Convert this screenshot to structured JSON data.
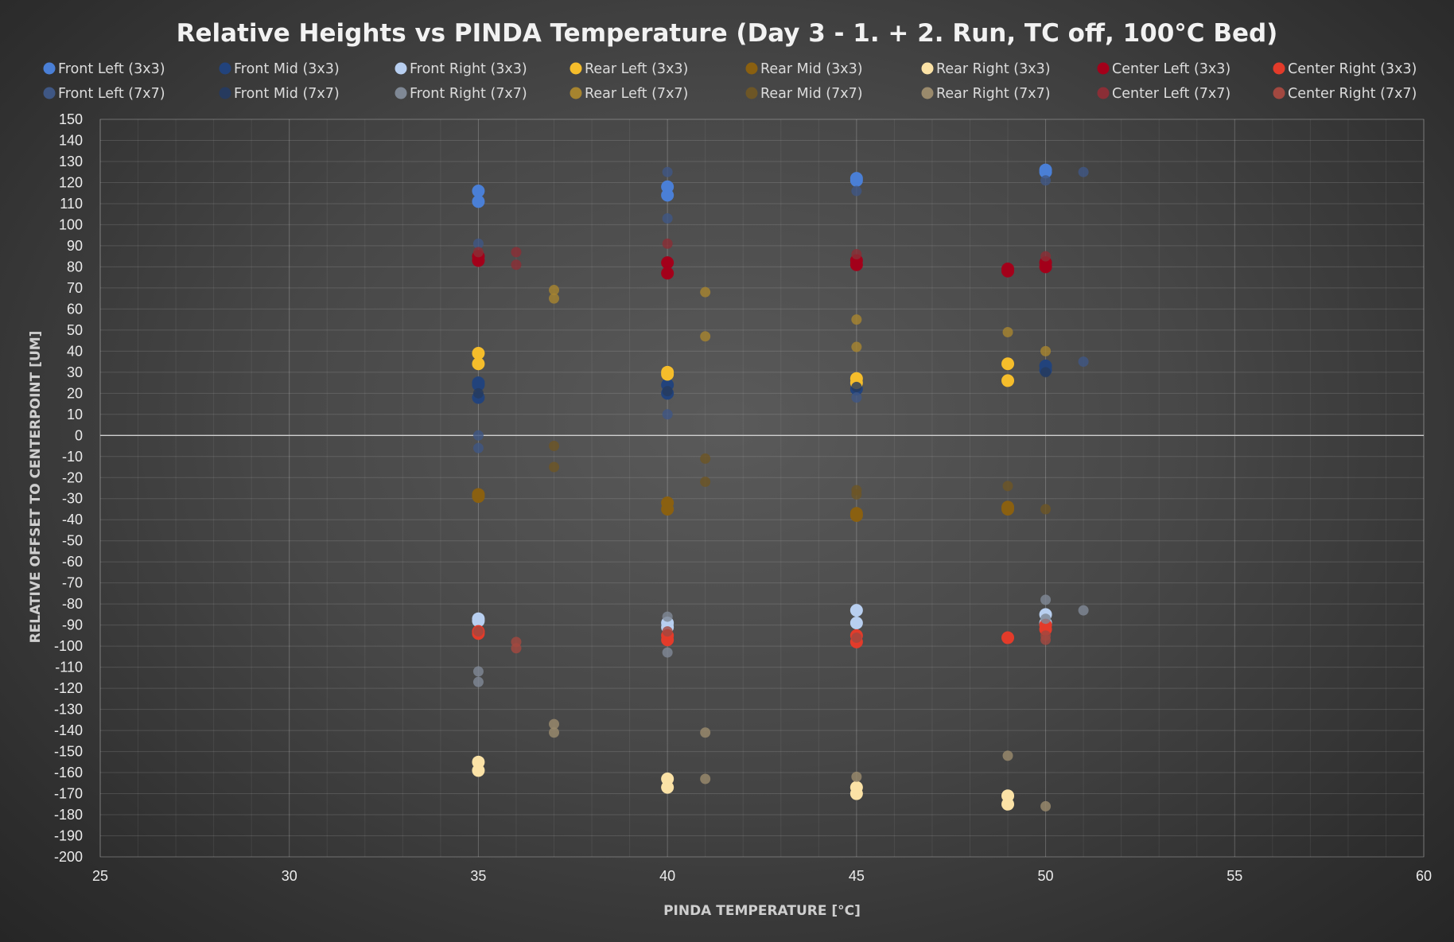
{
  "chart_data": {
    "type": "scatter",
    "title": "Relative Heights vs PINDA Temperature (Day 3 - 1. + 2. Run, TC off, 100°C Bed)",
    "xlabel": "PINDA TEMPERATURE [°C]",
    "ylabel": "RELATIVE OFFSET TO CENTERPOINT [UM]",
    "xlim": [
      25,
      60
    ],
    "ylim": [
      -200,
      150
    ],
    "x_ticks": [
      25,
      30,
      35,
      40,
      45,
      50,
      55,
      60
    ],
    "y_ticks": [
      150,
      140,
      130,
      120,
      110,
      100,
      90,
      80,
      70,
      60,
      50,
      40,
      30,
      20,
      10,
      0,
      -10,
      -20,
      -30,
      -40,
      -50,
      -60,
      -70,
      -80,
      -90,
      -100,
      -110,
      -120,
      -130,
      -140,
      -150,
      -160,
      -170,
      -180,
      -190,
      -200
    ],
    "grid": true,
    "legend_position": "top",
    "series": [
      {
        "name": "Front Left (3x3)",
        "color": "#4a7fd6",
        "points": [
          [
            35,
            116
          ],
          [
            35,
            111
          ],
          [
            40,
            118
          ],
          [
            40,
            114
          ],
          [
            45,
            122
          ],
          [
            45,
            121
          ],
          [
            50,
            125
          ],
          [
            50,
            126
          ]
        ]
      },
      {
        "name": "Front Mid (3x3)",
        "color": "#22437c",
        "points": [
          [
            35,
            25
          ],
          [
            35,
            24
          ],
          [
            35,
            18
          ],
          [
            40,
            29
          ],
          [
            40,
            24
          ],
          [
            40,
            20
          ],
          [
            45,
            25
          ],
          [
            45,
            22
          ],
          [
            50,
            33
          ],
          [
            50,
            31
          ]
        ]
      },
      {
        "name": "Front Right (3x3)",
        "color": "#b8cff0",
        "points": [
          [
            35,
            -87
          ],
          [
            35,
            -88
          ],
          [
            40,
            -89
          ],
          [
            40,
            -91
          ],
          [
            45,
            -83
          ],
          [
            45,
            -89
          ],
          [
            50,
            -85
          ],
          [
            50,
            -89
          ]
        ]
      },
      {
        "name": "Rear Left (3x3)",
        "color": "#f5bd2b",
        "points": [
          [
            35,
            39
          ],
          [
            35,
            34
          ],
          [
            40,
            30
          ],
          [
            40,
            29
          ],
          [
            45,
            27
          ],
          [
            45,
            25
          ],
          [
            49,
            34
          ],
          [
            49,
            26
          ]
        ]
      },
      {
        "name": "Rear Mid (3x3)",
        "color": "#8a6010",
        "points": [
          [
            35,
            -28
          ],
          [
            35,
            -29
          ],
          [
            40,
            -32
          ],
          [
            40,
            -35
          ],
          [
            45,
            -37
          ],
          [
            45,
            -38
          ],
          [
            49,
            -34
          ],
          [
            49,
            -35
          ]
        ]
      },
      {
        "name": "Rear Right (3x3)",
        "color": "#fbe2a6",
        "points": [
          [
            35,
            -155
          ],
          [
            35,
            -159
          ],
          [
            40,
            -163
          ],
          [
            40,
            -167
          ],
          [
            45,
            -167
          ],
          [
            45,
            -170
          ],
          [
            49,
            -171
          ],
          [
            49,
            -175
          ]
        ]
      },
      {
        "name": "Center Left (3x3)",
        "color": "#a3001a",
        "points": [
          [
            35,
            85
          ],
          [
            35,
            83
          ],
          [
            40,
            82
          ],
          [
            40,
            77
          ],
          [
            45,
            83
          ],
          [
            45,
            81
          ],
          [
            49,
            79
          ],
          [
            49,
            78
          ],
          [
            50,
            82
          ],
          [
            50,
            80
          ]
        ]
      },
      {
        "name": "Center Right (3x3)",
        "color": "#e33b2a",
        "points": [
          [
            35,
            -93
          ],
          [
            35,
            -94
          ],
          [
            40,
            -95
          ],
          [
            40,
            -97
          ],
          [
            45,
            -95
          ],
          [
            45,
            -98
          ],
          [
            49,
            -96
          ],
          [
            50,
            -90
          ],
          [
            50,
            -92
          ]
        ]
      },
      {
        "name": "Front Left (7x7)",
        "color": "#3f5784",
        "points": [
          [
            35,
            91
          ],
          [
            35,
            0
          ],
          [
            35,
            -6
          ],
          [
            40,
            125
          ],
          [
            40,
            103
          ],
          [
            40,
            10
          ],
          [
            45,
            116
          ],
          [
            45,
            18
          ],
          [
            50,
            121
          ],
          [
            51,
            125
          ],
          [
            51,
            35
          ]
        ]
      },
      {
        "name": "Front Mid (7x7)",
        "color": "#263a5e",
        "points": [
          [
            35,
            20
          ],
          [
            40,
            21
          ],
          [
            45,
            23
          ],
          [
            50,
            30
          ]
        ]
      },
      {
        "name": "Front Right (7x7)",
        "color": "#7f8895",
        "points": [
          [
            35,
            -112
          ],
          [
            35,
            -117
          ],
          [
            40,
            -86
          ],
          [
            40,
            -103
          ],
          [
            50,
            -78
          ],
          [
            50,
            -87
          ],
          [
            51,
            -83
          ]
        ]
      },
      {
        "name": "Rear Left (7x7)",
        "color": "#a6842f",
        "points": [
          [
            37,
            69
          ],
          [
            37,
            65
          ],
          [
            41,
            68
          ],
          [
            41,
            47
          ],
          [
            45,
            55
          ],
          [
            45,
            42
          ],
          [
            49,
            49
          ],
          [
            50,
            40
          ]
        ]
      },
      {
        "name": "Rear Mid (7x7)",
        "color": "#6d5626",
        "points": [
          [
            37,
            -5
          ],
          [
            37,
            -15
          ],
          [
            41,
            -11
          ],
          [
            41,
            -22
          ],
          [
            45,
            -26
          ],
          [
            45,
            -28
          ],
          [
            49,
            -24
          ],
          [
            50,
            -35
          ]
        ]
      },
      {
        "name": "Rear Right (7x7)",
        "color": "#9a8a6c",
        "points": [
          [
            37,
            -137
          ],
          [
            37,
            -141
          ],
          [
            41,
            -141
          ],
          [
            41,
            -163
          ],
          [
            45,
            -162
          ],
          [
            49,
            -152
          ],
          [
            50,
            -176
          ]
        ]
      },
      {
        "name": "Center Left (7x7)",
        "color": "#8a2e36",
        "points": [
          [
            35,
            87
          ],
          [
            36,
            87
          ],
          [
            36,
            81
          ],
          [
            40,
            91
          ],
          [
            45,
            86
          ],
          [
            50,
            85
          ]
        ]
      },
      {
        "name": "Center Right (7x7)",
        "color": "#a24840",
        "points": [
          [
            35,
            -93
          ],
          [
            36,
            -98
          ],
          [
            36,
            -101
          ],
          [
            40,
            -93
          ],
          [
            45,
            -96
          ],
          [
            50,
            -95
          ],
          [
            50,
            -97
          ]
        ]
      }
    ]
  }
}
